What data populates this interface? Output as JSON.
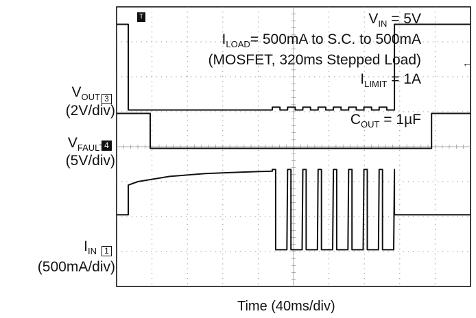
{
  "chart_data": {
    "type": "line",
    "xlabel": "Time (40ms/div)",
    "divisions": {
      "x": 10,
      "y": 8
    },
    "grid": true,
    "channels": [
      {
        "id": "3",
        "name_main": "V",
        "name_sub": "OUT",
        "scale": "(2V/div)",
        "ref_div": 2.95,
        "unit_per_div": 2,
        "points": [
          [
            0,
            2.45
          ],
          [
            0.33,
            2.45
          ],
          [
            0.33,
            0.0
          ],
          [
            4.4,
            0.0
          ],
          [
            6.3,
            0.0
          ],
          [
            7.85,
            0.0
          ],
          [
            7.85,
            2.45
          ],
          [
            10,
            2.45
          ]
        ],
        "ripple": {
          "x_start": 4.4,
          "x_end": 7.85,
          "amplitude": 0.08,
          "cycles": 8
        }
      },
      {
        "id": "4",
        "name_main": "V",
        "name_sub": "FAULT/",
        "scale": "(5V/div)",
        "ref_div": 4.05,
        "unit_per_div": 5,
        "points": [
          [
            0,
            1.0
          ],
          [
            0.95,
            1.0
          ],
          [
            0.95,
            0.0
          ],
          [
            8.9,
            0.0
          ],
          [
            8.9,
            1.0
          ],
          [
            10,
            1.0
          ]
        ]
      },
      {
        "id": "1",
        "name_main": "I",
        "name_sub": "IN",
        "scale": "(500mA/div)",
        "ref_div": 6.95,
        "unit_per_div": 500,
        "points": [
          [
            0,
            1.0
          ],
          [
            0.33,
            1.0
          ],
          [
            0.33,
            1.85
          ],
          [
            0.6,
            1.95
          ],
          [
            1.5,
            2.1
          ],
          [
            2.5,
            2.18
          ],
          [
            3.5,
            2.22
          ],
          [
            4.4,
            2.25
          ]
        ],
        "pulse_train": {
          "x_start": 4.4,
          "x_end": 7.85,
          "high": 2.3,
          "low": 0.0,
          "pulses": 8,
          "duty_high": 0.22
        },
        "tail": [
          [
            7.85,
            1.0
          ],
          [
            10,
            1.0
          ]
        ]
      }
    ],
    "annotations": {
      "vin": {
        "main": "V",
        "sub": "IN",
        "rest": " = 5V"
      },
      "iload": {
        "main": "I",
        "sub": "LOAD",
        "rest": "= 500mA to S.C. to 500mA"
      },
      "mosfet": "(MOSFET, 320ms Stepped Load)",
      "ilimit": {
        "main": "I",
        "sub": "LIMIT",
        "rest": " = 1A"
      },
      "cout": {
        "main": "C",
        "sub": "OUT",
        "rest": " = 1µF"
      }
    },
    "trigger_marker": "T"
  }
}
